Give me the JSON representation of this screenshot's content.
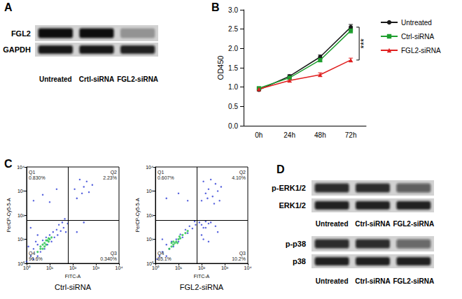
{
  "panel_labels": [
    "A",
    "B",
    "C",
    "D"
  ],
  "blots": [
    {
      "lanes": [
        "Untreated",
        "Crtl-siRNA",
        "FGL2-siRNA"
      ],
      "rows": [
        {
          "label": "FGL2",
          "intensity": [
            1.0,
            1.0,
            0.3
          ]
        },
        {
          "label": "GAPDH",
          "intensity": [
            0.95,
            0.95,
            0.9
          ]
        }
      ]
    },
    {
      "lanes": [
        "Untreated",
        "Ctrl-siRNA",
        "FGL2-siRNA"
      ],
      "rows": [
        {
          "label": "p-ERK1/2",
          "intensity": [
            0.85,
            0.85,
            0.6
          ]
        },
        {
          "label": "ERK1/2",
          "intensity": [
            0.9,
            0.9,
            0.9
          ]
        }
      ]
    },
    {
      "lanes": [
        "Untreated",
        "Ctrl-siRNA",
        "FGL2-siRNA"
      ],
      "rows": [
        {
          "label": "p-p38",
          "intensity": [
            0.85,
            0.85,
            0.55
          ]
        },
        {
          "label": "p38",
          "intensity": [
            0.9,
            0.9,
            0.9
          ]
        }
      ]
    }
  ],
  "chart_data": [
    {
      "type": "line",
      "y_label": "OD450",
      "categories": [
        "0h",
        "24h",
        "48h",
        "72h"
      ],
      "ylim": [
        0,
        3
      ],
      "yticks": [
        {
          "value": 0,
          "label": "0.0"
        },
        0.5,
        {
          "value": 1,
          "label": "1.0"
        },
        1.5,
        {
          "value": 2,
          "label": "2.0"
        },
        2.5,
        {
          "value": 3,
          "label": "3.0"
        }
      ],
      "grid": false,
      "legend": "right",
      "series": [
        {
          "name": "Untreated",
          "color": "#1a1a1a",
          "marker": "circle",
          "values": [
            0.93,
            1.28,
            1.78,
            2.55
          ],
          "errors": [
            0.03,
            0.04,
            0.05,
            0.07
          ]
        },
        {
          "name": "Ctrl-siRNA",
          "color": "#1e9e2e",
          "marker": "square",
          "values": [
            0.97,
            1.24,
            1.7,
            2.46
          ],
          "errors": [
            0.03,
            0.03,
            0.05,
            0.06
          ]
        },
        {
          "name": "FGL2-siRNA",
          "color": "#e02020",
          "marker": "triangle",
          "values": [
            0.95,
            1.17,
            1.32,
            1.7
          ],
          "errors": [
            0.03,
            0.04,
            0.05,
            0.05
          ]
        }
      ],
      "annotations": [
        {
          "text": "***"
        }
      ]
    },
    {
      "type": "scatter",
      "title": "Ctrl-siRNA",
      "x_label": "FITC-A",
      "y_label": "PerCP-Cy5-5-A",
      "log": true,
      "grid": false,
      "xlim": [
        1,
        10000
      ],
      "ylim": [
        1,
        10000
      ],
      "xticks": [
        {
          "value": 1,
          "label": "10⁰"
        },
        {
          "value": 10,
          "label": "10¹"
        },
        {
          "value": 100,
          "label": "10²"
        },
        {
          "value": 1000,
          "label": "10³"
        },
        {
          "value": 10000,
          "label": "10⁴"
        }
      ],
      "yticks": [
        {
          "value": 1,
          "label": "10⁰"
        },
        {
          "value": 10,
          "label": "10¹"
        },
        {
          "value": 100,
          "label": "10²"
        },
        {
          "value": 1000,
          "label": "10³"
        },
        {
          "value": 10000,
          "label": "10⁴"
        }
      ],
      "quadrants": {
        "x": 63,
        "y": 60,
        "labels": [
          {
            "name": "Q1",
            "value": 0.83,
            "label": "0.830%"
          },
          {
            "name": "Q2",
            "value": 2.23,
            "label": "2.23%"
          },
          {
            "name": "Q3",
            "value": 0.34,
            "label": "0.340%"
          },
          {
            "name": "Q4",
            "value": 96.6,
            "label": "96.6%"
          }
        ]
      },
      "series": [
        {
          "color": "#2f3fd6",
          "values": [
            [
              1.5,
              2
            ],
            [
              2,
              1.5
            ],
            [
              2,
              4
            ],
            [
              3,
              2
            ],
            [
              3,
              6
            ],
            [
              4,
              3
            ],
            [
              5,
              9
            ],
            [
              6,
              4
            ],
            [
              7,
              12
            ],
            [
              8,
              6
            ],
            [
              10,
              15
            ],
            [
              12,
              8
            ],
            [
              14,
              20
            ],
            [
              16,
              12
            ],
            [
              20,
              25
            ],
            [
              22,
              15
            ],
            [
              25,
              40
            ],
            [
              30,
              22
            ],
            [
              35,
              50
            ],
            [
              40,
              30
            ],
            [
              45,
              70
            ],
            [
              1.2,
              5
            ],
            [
              2.5,
              8
            ],
            [
              50,
              20
            ],
            [
              60,
              45
            ],
            [
              1,
              1.2
            ],
            [
              3,
              15
            ],
            [
              1.5,
              30
            ],
            [
              2,
              400
            ],
            [
              5,
              700
            ],
            [
              10,
              350
            ],
            [
              20,
              1200
            ],
            [
              150,
              500
            ],
            [
              250,
              800
            ],
            [
              300,
              1500
            ],
            [
              400,
              2500
            ],
            [
              500,
              900
            ],
            [
              200,
              3000
            ],
            [
              700,
              1800
            ],
            [
              120,
              1200
            ],
            [
              150,
              20
            ],
            [
              300,
              50
            ]
          ]
        },
        {
          "color": "#22c04a",
          "values": [
            [
              3,
              3
            ],
            [
              4,
              5
            ],
            [
              5,
              4
            ],
            [
              5,
              6
            ],
            [
              6,
              7
            ],
            [
              7,
              6
            ],
            [
              8,
              9
            ],
            [
              9,
              8
            ],
            [
              10,
              10
            ],
            [
              6,
              5
            ],
            [
              4,
              4
            ],
            [
              12,
              12
            ],
            [
              7,
              9
            ],
            [
              9,
              11
            ]
          ]
        }
      ]
    },
    {
      "type": "scatter",
      "title": "FGL2-siRNA",
      "x_label": "FITC-A",
      "y_label": "PerCP-Cy5-5-A",
      "log": true,
      "grid": false,
      "xlim": [
        1,
        10000
      ],
      "ylim": [
        1,
        10000
      ],
      "xticks": [
        {
          "value": 1,
          "label": "10⁰"
        },
        {
          "value": 10,
          "label": "10¹"
        },
        {
          "value": 100,
          "label": "10²"
        },
        {
          "value": 1000,
          "label": "10³"
        },
        {
          "value": 10000,
          "label": "10⁴"
        }
      ],
      "yticks": [
        {
          "value": 1,
          "label": "10⁰"
        },
        {
          "value": 10,
          "label": "10¹"
        },
        {
          "value": 100,
          "label": "10²"
        },
        {
          "value": 1000,
          "label": "10³"
        },
        {
          "value": 10000,
          "label": "10⁴"
        }
      ],
      "quadrants": {
        "x": 63,
        "y": 60,
        "labels": [
          {
            "name": "Q1",
            "value": 0.607,
            "label": "0.607%"
          },
          {
            "name": "Q2",
            "value": 4.1,
            "label": "4.10%"
          },
          {
            "name": "Q3",
            "value": 10.2,
            "label": "10.2%"
          },
          {
            "name": "Q4",
            "value": 85.1,
            "label": "85.1%"
          }
        ]
      },
      "series": [
        {
          "color": "#2f3fd6",
          "values": [
            [
              1.5,
              2
            ],
            [
              2,
              3
            ],
            [
              3,
              2
            ],
            [
              3,
              6
            ],
            [
              4,
              4
            ],
            [
              5,
              8
            ],
            [
              6,
              5
            ],
            [
              8,
              10
            ],
            [
              10,
              8
            ],
            [
              12,
              16
            ],
            [
              15,
              12
            ],
            [
              20,
              25
            ],
            [
              25,
              18
            ],
            [
              30,
              35
            ],
            [
              40,
              28
            ],
            [
              50,
              55
            ],
            [
              55,
              40
            ],
            [
              80,
              50
            ],
            [
              100,
              40
            ],
            [
              120,
              30
            ],
            [
              150,
              55
            ],
            [
              200,
              45
            ],
            [
              1.2,
              1.5
            ],
            [
              2,
              10
            ],
            [
              3,
              500
            ],
            [
              10,
              800
            ],
            [
              25,
              400
            ],
            [
              100,
              400
            ],
            [
              150,
              800
            ],
            [
              200,
              1200
            ],
            [
              300,
              600
            ],
            [
              400,
              2000
            ],
            [
              500,
              1000
            ],
            [
              250,
              3000
            ],
            [
              700,
              1500
            ],
            [
              120,
              2500
            ],
            [
              180,
              500
            ],
            [
              350,
              300
            ],
            [
              600,
              400
            ],
            [
              100,
              15
            ],
            [
              150,
              30
            ],
            [
              250,
              50
            ],
            [
              400,
              35
            ],
            [
              500,
              20
            ],
            [
              120,
              10
            ],
            [
              200,
              8
            ]
          ]
        },
        {
          "color": "#22c04a",
          "values": [
            [
              4,
              4
            ],
            [
              5,
              5
            ],
            [
              6,
              6
            ],
            [
              7,
              7
            ],
            [
              8,
              8
            ],
            [
              10,
              10
            ],
            [
              12,
              11
            ],
            [
              6,
              8
            ],
            [
              9,
              7
            ],
            [
              15,
              15
            ],
            [
              11,
              13
            ],
            [
              20,
              18
            ],
            [
              5,
              7
            ],
            [
              25,
              22
            ]
          ]
        }
      ]
    }
  ]
}
